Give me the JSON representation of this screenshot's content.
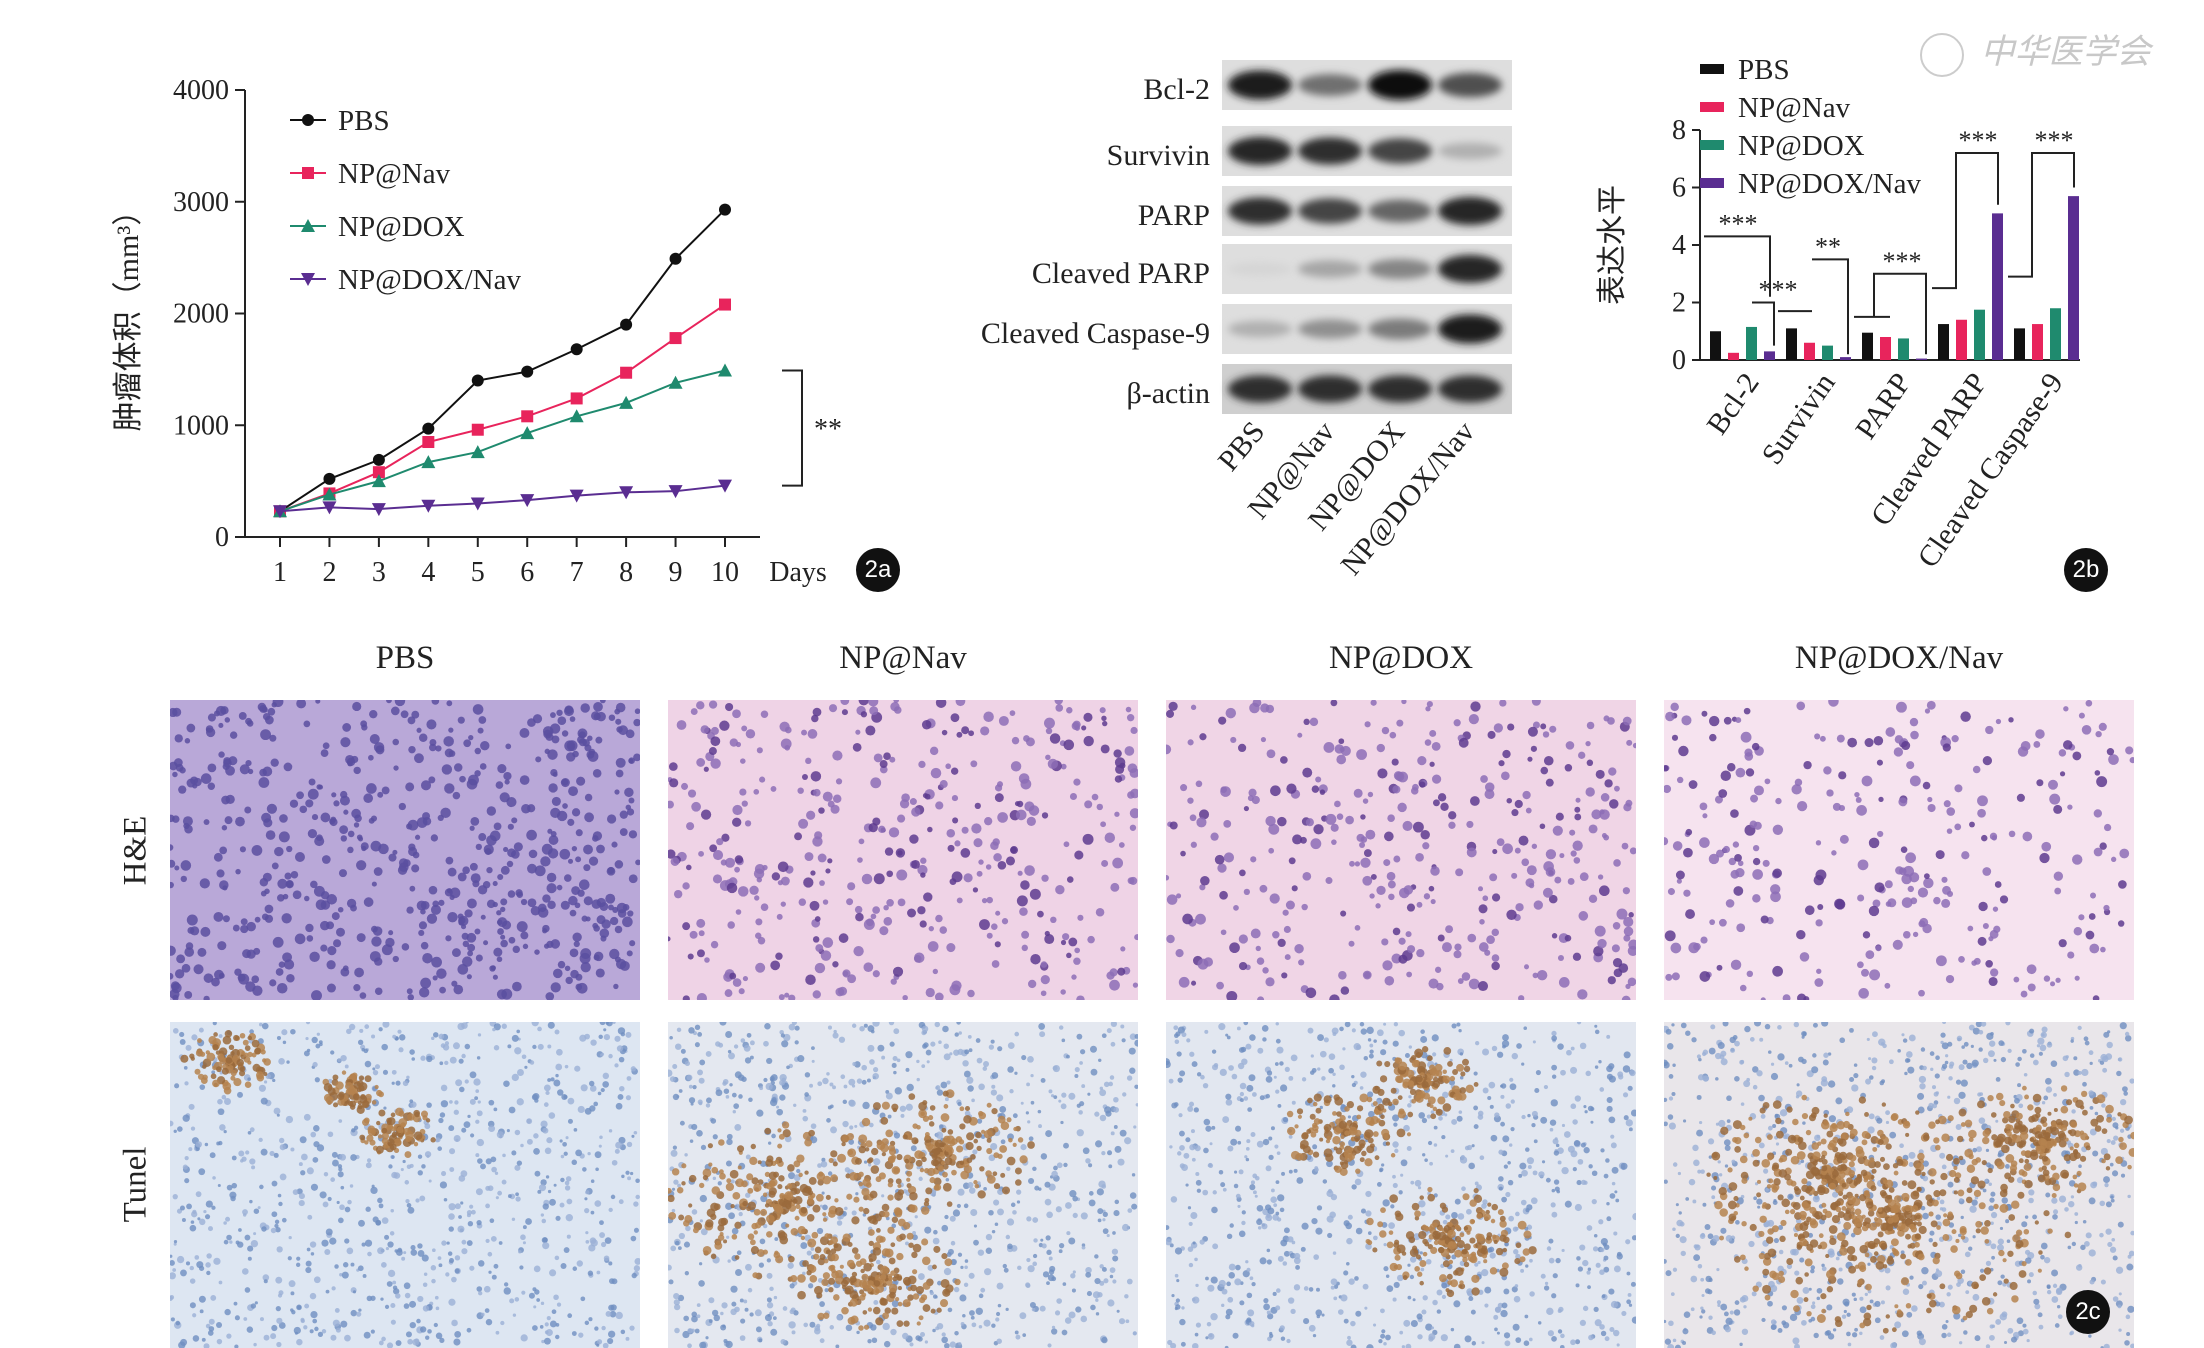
{
  "watermark": "中华医学会",
  "panel_tags": {
    "a": "2a",
    "b": "2b",
    "c": "2c"
  },
  "colors": {
    "PBS": "#111111",
    "NP@Nav": "#e8245c",
    "NP@DOX": "#1f8a6e",
    "NP@DOX/Nav": "#5a2d91"
  },
  "chart_data": [
    {
      "type": "line",
      "ylabel": "肿瘤体积（mm³）",
      "xlabel": "Days",
      "ylim": [
        0,
        4000
      ],
      "yticks": [
        0,
        1000,
        2000,
        3000,
        4000
      ],
      "x": [
        1,
        2,
        3,
        4,
        5,
        6,
        7,
        8,
        9,
        10
      ],
      "legend": "top-left",
      "significance": "**",
      "series": [
        {
          "name": "PBS",
          "marker": "circle",
          "values": [
            230,
            520,
            690,
            970,
            1400,
            1480,
            1680,
            1900,
            2490,
            2930
          ]
        },
        {
          "name": "NP@Nav",
          "marker": "square",
          "values": [
            230,
            390,
            580,
            850,
            960,
            1080,
            1240,
            1470,
            1780,
            2080
          ]
        },
        {
          "name": "NP@DOX",
          "marker": "triangle-up",
          "values": [
            230,
            380,
            500,
            670,
            760,
            930,
            1080,
            1200,
            1380,
            1490
          ]
        },
        {
          "name": "NP@DOX/Nav",
          "marker": "triangle-down",
          "values": [
            230,
            265,
            250,
            280,
            300,
            330,
            370,
            400,
            410,
            460
          ]
        }
      ]
    },
    {
      "type": "table",
      "blot_rows": [
        "Bcl-2",
        "Survivin",
        "PARP",
        "Cleaved PARP",
        "Cleaved Caspase-9",
        "β-actin"
      ],
      "lanes": [
        "PBS",
        "NP@Nav",
        "NP@DOX",
        "NP@DOX/Nav"
      ],
      "band_intensity": [
        [
          0.95,
          0.55,
          1.0,
          0.7
        ],
        [
          0.9,
          0.85,
          0.75,
          0.25
        ],
        [
          0.85,
          0.75,
          0.6,
          0.9
        ],
        [
          0.08,
          0.3,
          0.45,
          0.9
        ],
        [
          0.25,
          0.4,
          0.5,
          0.95
        ],
        [
          0.85,
          0.85,
          0.85,
          0.85
        ]
      ]
    },
    {
      "type": "bar",
      "ylabel": "表达水平",
      "ylim": [
        0,
        8
      ],
      "yticks": [
        0,
        2,
        4,
        6,
        8
      ],
      "categories": [
        "Bcl-2",
        "Survivin",
        "PARP",
        "Cleaved PARP",
        "Cleaved Caspase-9"
      ],
      "legend": "top",
      "series": [
        {
          "name": "PBS",
          "values": [
            1.0,
            1.1,
            0.95,
            1.25,
            1.1
          ]
        },
        {
          "name": "NP@Nav",
          "values": [
            0.25,
            0.6,
            0.8,
            1.4,
            1.25
          ]
        },
        {
          "name": "NP@DOX",
          "values": [
            1.15,
            0.5,
            0.75,
            1.75,
            1.8
          ]
        },
        {
          "name": "NP@DOX/Nav",
          "values": [
            0.3,
            0.1,
            0.05,
            5.1,
            5.7
          ]
        }
      ],
      "significance": [
        "***",
        "***",
        "**",
        "***",
        "***",
        "***"
      ]
    }
  ],
  "histology": {
    "columns": [
      "PBS",
      "NP@Nav",
      "NP@DOX",
      "NP@DOX/Nav"
    ],
    "rows": [
      "H&E",
      "Tunel"
    ]
  }
}
